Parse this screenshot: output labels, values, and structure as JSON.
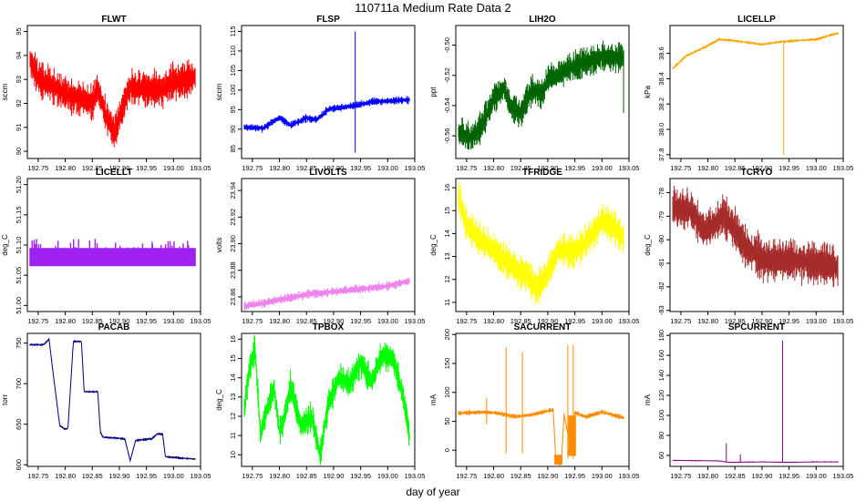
{
  "figure": {
    "title": "110711a   Medium Rate Data 2",
    "xlabel": "day of year"
  },
  "chart_data": [
    {
      "type": "line",
      "title": "FLWT",
      "ylabel": "sccm",
      "color": "#ff0000",
      "xlim": [
        192.73,
        193.05
      ],
      "ylim": [
        89.7,
        95.25
      ],
      "xticks": [
        192.75,
        192.8,
        192.85,
        192.9,
        192.95,
        193.0,
        193.05
      ],
      "xtick_labels": [
        "192.75",
        "192.80",
        "192.85",
        "192.90",
        "192.95",
        "193.00",
        "193.05"
      ],
      "yticks": [
        90,
        91,
        92,
        93,
        94,
        95
      ],
      "ytick_labels": [
        "90",
        "91",
        "92",
        "93",
        "94",
        "95"
      ],
      "x_range": [
        192.735,
        193.04
      ],
      "base": [
        [
          192.735,
          93.8
        ],
        [
          192.75,
          93.0
        ],
        [
          192.78,
          92.7
        ],
        [
          192.8,
          92.4
        ],
        [
          192.83,
          92.2
        ],
        [
          192.85,
          92.0
        ],
        [
          192.86,
          92.6
        ],
        [
          192.875,
          91.5
        ],
        [
          192.89,
          90.7
        ],
        [
          192.905,
          91.8
        ],
        [
          192.92,
          92.7
        ],
        [
          192.95,
          92.6
        ],
        [
          192.98,
          92.6
        ],
        [
          193.0,
          92.9
        ],
        [
          193.04,
          93.1
        ]
      ],
      "noise": 0.9,
      "spikes": []
    },
    {
      "type": "line",
      "title": "FLSP",
      "ylabel": "sccm",
      "color": "#0000ff",
      "xlim": [
        192.73,
        193.05
      ],
      "ylim": [
        82.5,
        116.5
      ],
      "xticks": [
        192.75,
        192.8,
        192.85,
        192.9,
        192.95,
        193.0,
        193.05
      ],
      "xtick_labels": [
        "192.75",
        "192.80",
        "192.85",
        "192.90",
        "192.95",
        "193.00",
        "193.05"
      ],
      "yticks": [
        85,
        90,
        95,
        100,
        105,
        110,
        115
      ],
      "ytick_labels": [
        "85",
        "90",
        "95",
        "100",
        "105",
        "110",
        "115"
      ],
      "x_range": [
        192.735,
        193.04
      ],
      "base": [
        [
          192.735,
          90.5
        ],
        [
          192.77,
          90.2
        ],
        [
          192.8,
          93.0
        ],
        [
          192.82,
          91.0
        ],
        [
          192.85,
          92.8
        ],
        [
          192.87,
          92.5
        ],
        [
          192.89,
          95.0
        ],
        [
          192.91,
          95.5
        ],
        [
          192.94,
          96.0
        ],
        [
          192.97,
          97.0
        ],
        [
          193.04,
          97.5
        ]
      ],
      "noise": 1.2,
      "spikes": [
        [
          192.94,
          84.0,
          115.0
        ]
      ]
    },
    {
      "type": "line",
      "title": "LIH2O",
      "ylabel": "ppt",
      "color": "#006400",
      "xlim": [
        192.73,
        193.05
      ],
      "ylim": [
        -0.575,
        -0.487
      ],
      "xticks": [
        192.75,
        192.8,
        192.85,
        192.9,
        192.95,
        193.0,
        193.05
      ],
      "xtick_labels": [
        "192.75",
        "192.80",
        "192.85",
        "192.90",
        "192.95",
        "193.00",
        "193.05"
      ],
      "yticks": [
        -0.56,
        -0.54,
        -0.52,
        -0.5
      ],
      "ytick_labels": [
        "-0.56",
        "-0.54",
        "-0.52",
        "-0.50"
      ],
      "x_range": [
        192.735,
        193.04
      ],
      "base": [
        [
          192.735,
          -0.558
        ],
        [
          192.76,
          -0.561
        ],
        [
          192.78,
          -0.552
        ],
        [
          192.8,
          -0.535
        ],
        [
          192.82,
          -0.528
        ],
        [
          192.83,
          -0.54
        ],
        [
          192.85,
          -0.545
        ],
        [
          192.87,
          -0.53
        ],
        [
          192.89,
          -0.532
        ],
        [
          192.9,
          -0.522
        ],
        [
          192.92,
          -0.52
        ],
        [
          192.94,
          -0.515
        ],
        [
          192.96,
          -0.513
        ],
        [
          192.98,
          -0.51
        ],
        [
          193.0,
          -0.508
        ],
        [
          193.04,
          -0.508
        ]
      ],
      "noise": 0.012,
      "spikes": [
        [
          193.04,
          -0.545,
          -0.505
        ]
      ]
    },
    {
      "type": "line",
      "title": "LICELLP",
      "ylabel": "kPa",
      "color": "#ffa500",
      "xlim": [
        192.73,
        193.05
      ],
      "ylim": [
        37.77,
        38.82
      ],
      "xticks": [
        192.75,
        192.8,
        192.85,
        192.9,
        192.95,
        193.0,
        193.05
      ],
      "xtick_labels": [
        "192.75",
        "192.80",
        "192.85",
        "192.90",
        "192.95",
        "193.00",
        "193.05"
      ],
      "yticks": [
        37.8,
        38.0,
        38.2,
        38.4,
        38.6
      ],
      "ytick_labels": [
        "37.8",
        "38.0",
        "38.2",
        "38.4",
        "38.6"
      ],
      "x_range": [
        192.735,
        193.04
      ],
      "base": [
        [
          192.735,
          38.48
        ],
        [
          192.76,
          38.58
        ],
        [
          192.78,
          38.62
        ],
        [
          192.8,
          38.66
        ],
        [
          192.82,
          38.71
        ],
        [
          192.85,
          38.7
        ],
        [
          192.9,
          38.67
        ],
        [
          192.93,
          38.69
        ],
        [
          192.96,
          38.7
        ],
        [
          193.0,
          38.71
        ],
        [
          193.04,
          38.76
        ]
      ],
      "noise": 0.015,
      "spikes": [
        [
          192.94,
          37.8,
          38.69
        ]
      ]
    },
    {
      "type": "line",
      "title": "LICELLT",
      "ylabel": "deg_C",
      "color": "#a020f0",
      "xlim": [
        192.73,
        193.05
      ],
      "ylim": [
        50.99,
        51.21
      ],
      "xticks": [
        192.75,
        192.8,
        192.85,
        192.9,
        192.95,
        193.0,
        193.05
      ],
      "xtick_labels": [
        "192.75",
        "192.80",
        "192.85",
        "192.90",
        "192.95",
        "193.00",
        "193.05"
      ],
      "yticks": [
        51.0,
        51.05,
        51.1,
        51.15,
        51.2
      ],
      "ytick_labels": [
        "51.00",
        "51.05",
        "51.10",
        "51.15",
        "51.20"
      ],
      "x_range": [
        192.735,
        193.04
      ],
      "base": [
        [
          192.735,
          51.08
        ],
        [
          193.04,
          51.08
        ]
      ],
      "noise": 0.012,
      "band": [
        51.065,
        51.095
      ],
      "spikes": []
    },
    {
      "type": "line",
      "title": "LIVOLTS",
      "ylabel": "volts",
      "color": "#ee82ee",
      "xlim": [
        192.73,
        193.05
      ],
      "ylim": [
        23.849,
        23.949
      ],
      "xticks": [
        192.75,
        192.8,
        192.85,
        192.9,
        192.95,
        193.0,
        193.05
      ],
      "xtick_labels": [
        "192.75",
        "192.80",
        "192.85",
        "192.90",
        "192.95",
        "193.00",
        "193.05"
      ],
      "yticks": [
        23.86,
        23.88,
        23.9,
        23.92,
        23.94
      ],
      "ytick_labels": [
        "23.86",
        "23.88",
        "23.90",
        "23.92",
        "23.94"
      ],
      "x_range": [
        192.735,
        193.04
      ],
      "base": [
        [
          192.735,
          23.853
        ],
        [
          192.78,
          23.856
        ],
        [
          192.8,
          23.858
        ],
        [
          192.83,
          23.86
        ],
        [
          192.85,
          23.862
        ],
        [
          192.88,
          23.863
        ],
        [
          192.9,
          23.864
        ],
        [
          192.95,
          23.866
        ],
        [
          193.0,
          23.868
        ],
        [
          193.02,
          23.87
        ],
        [
          193.04,
          23.872
        ]
      ],
      "noise": 0.004,
      "spikes": []
    },
    {
      "type": "line",
      "title": "TFRIDGE",
      "ylabel": "deg_C",
      "color": "#ffff00",
      "xlim": [
        192.73,
        193.05
      ],
      "ylim": [
        10.6,
        16.4
      ],
      "xticks": [
        192.75,
        192.8,
        192.85,
        192.9,
        192.95,
        193.0,
        193.05
      ],
      "xtick_labels": [
        "192.75",
        "192.80",
        "192.85",
        "192.90",
        "192.95",
        "193.00",
        "193.05"
      ],
      "yticks": [
        11,
        12,
        13,
        14,
        15,
        16
      ],
      "ytick_labels": [
        "11",
        "12",
        "13",
        "14",
        "15",
        "16"
      ],
      "x_range": [
        192.735,
        193.04
      ],
      "base": [
        [
          192.735,
          15.6
        ],
        [
          192.75,
          14.4
        ],
        [
          192.77,
          13.8
        ],
        [
          192.8,
          13.3
        ],
        [
          192.83,
          12.6
        ],
        [
          192.86,
          12.2
        ],
        [
          192.88,
          11.6
        ],
        [
          192.9,
          12.3
        ],
        [
          192.92,
          13.3
        ],
        [
          192.95,
          13.2
        ],
        [
          192.98,
          13.9
        ],
        [
          193.0,
          14.6
        ],
        [
          193.02,
          14.3
        ],
        [
          193.04,
          13.8
        ]
      ],
      "noise": 0.9,
      "spikes": []
    },
    {
      "type": "line",
      "title": "TCRYO",
      "ylabel": "deg_C",
      "color": "#a52a2a",
      "xlim": [
        192.73,
        193.05
      ],
      "ylim": [
        -83.05,
        -77.4
      ],
      "xticks": [
        192.75,
        192.8,
        192.85,
        192.9,
        192.95,
        193.0,
        193.05
      ],
      "xtick_labels": [
        "192.75",
        "192.80",
        "192.85",
        "192.90",
        "192.95",
        "193.00",
        "193.05"
      ],
      "yticks": [
        -83,
        -82,
        -81,
        -80,
        -79,
        -78
      ],
      "ytick_labels": [
        "-83",
        "-82",
        "-81",
        "-80",
        "-79",
        "-78"
      ],
      "x_range": [
        192.735,
        193.04
      ],
      "base": [
        [
          192.735,
          -78.6
        ],
        [
          192.77,
          -78.8
        ],
        [
          192.79,
          -79.6
        ],
        [
          192.81,
          -79.4
        ],
        [
          192.83,
          -78.9
        ],
        [
          192.85,
          -79.6
        ],
        [
          192.87,
          -80.3
        ],
        [
          192.9,
          -80.8
        ],
        [
          192.93,
          -80.9
        ],
        [
          192.96,
          -80.9
        ],
        [
          193.0,
          -81.0
        ],
        [
          193.04,
          -81.2
        ]
      ],
      "noise": 1.1,
      "spikes": []
    },
    {
      "type": "line",
      "title": "PACAB",
      "ylabel": "torr",
      "color": "#000080",
      "xlim": [
        192.73,
        193.05
      ],
      "ylim": [
        598,
        762
      ],
      "xticks": [
        192.75,
        192.8,
        192.85,
        192.9,
        192.95,
        193.0,
        193.05
      ],
      "xtick_labels": [
        "192.75",
        "192.80",
        "192.85",
        "192.90",
        "192.95",
        "193.00",
        "193.05"
      ],
      "yticks": [
        600,
        650,
        700,
        750
      ],
      "ytick_labels": [
        "600",
        "650",
        "700",
        "750"
      ],
      "x_range": [
        192.735,
        193.04
      ],
      "base": [
        [
          192.735,
          748
        ],
        [
          192.76,
          748
        ],
        [
          192.77,
          755
        ],
        [
          192.78,
          700
        ],
        [
          192.79,
          648
        ],
        [
          192.8,
          644
        ],
        [
          192.805,
          645
        ],
        [
          192.815,
          752
        ],
        [
          192.83,
          752
        ],
        [
          192.835,
          690
        ],
        [
          192.86,
          690
        ],
        [
          192.865,
          640
        ],
        [
          192.87,
          634
        ],
        [
          192.91,
          632
        ],
        [
          192.92,
          605
        ],
        [
          192.93,
          630
        ],
        [
          192.96,
          632
        ],
        [
          192.97,
          638
        ],
        [
          192.98,
          638
        ],
        [
          192.985,
          610
        ],
        [
          193.0,
          609
        ],
        [
          193.04,
          607
        ]
      ],
      "noise": 2.0,
      "spikes": []
    },
    {
      "type": "line",
      "title": "TPBOX",
      "ylabel": "deg_C",
      "color": "#00ff00",
      "xlim": [
        192.73,
        193.05
      ],
      "ylim": [
        9.4,
        16.3
      ],
      "xticks": [
        192.75,
        192.8,
        192.85,
        192.9,
        192.95,
        193.0,
        193.05
      ],
      "xtick_labels": [
        "192.75",
        "192.80",
        "192.85",
        "192.90",
        "192.95",
        "193.00",
        "193.05"
      ],
      "yticks": [
        10,
        11,
        12,
        13,
        14,
        15,
        16
      ],
      "ytick_labels": [
        "10",
        "11",
        "12",
        "13",
        "14",
        "15",
        "16"
      ],
      "x_range": [
        192.735,
        193.04
      ],
      "base": [
        [
          192.735,
          12.3
        ],
        [
          192.745,
          14.5
        ],
        [
          192.755,
          15.5
        ],
        [
          192.765,
          11.0
        ],
        [
          192.775,
          12.2
        ],
        [
          192.79,
          13.5
        ],
        [
          192.8,
          11.2
        ],
        [
          192.81,
          12.0
        ],
        [
          192.82,
          13.6
        ],
        [
          192.84,
          11.5
        ],
        [
          192.86,
          12.0
        ],
        [
          192.875,
          10.0
        ],
        [
          192.89,
          12.6
        ],
        [
          192.91,
          14.0
        ],
        [
          192.93,
          13.7
        ],
        [
          192.95,
          14.8
        ],
        [
          192.97,
          13.8
        ],
        [
          192.99,
          15.2
        ],
        [
          193.01,
          15.0
        ],
        [
          193.03,
          12.8
        ],
        [
          193.04,
          11.0
        ]
      ],
      "noise": 0.9,
      "spikes": []
    },
    {
      "type": "line",
      "title": "SACURRENT",
      "ylabel": "mA",
      "color": "#ff8c00",
      "xlim": [
        192.73,
        193.05
      ],
      "ylim": [
        -28,
        202
      ],
      "xticks": [
        192.75,
        192.8,
        192.85,
        192.9,
        192.95,
        193.0,
        193.05
      ],
      "xtick_labels": [
        "192.75",
        "192.80",
        "192.85",
        "192.90",
        "192.95",
        "193.00",
        "193.05"
      ],
      "yticks": [
        0,
        50,
        100,
        150,
        200
      ],
      "ytick_labels": [
        "0",
        "50",
        "100",
        "150",
        "200"
      ],
      "x_range": [
        192.735,
        193.04
      ],
      "base": [
        [
          192.735,
          64
        ],
        [
          192.78,
          66
        ],
        [
          192.8,
          65
        ],
        [
          192.84,
          58
        ],
        [
          192.87,
          61
        ],
        [
          192.9,
          68
        ],
        [
          192.91,
          70
        ],
        [
          192.915,
          -22
        ],
        [
          192.925,
          -22
        ],
        [
          192.93,
          62
        ],
        [
          192.94,
          15
        ],
        [
          192.95,
          65
        ],
        [
          192.97,
          58
        ],
        [
          193.0,
          66
        ],
        [
          193.04,
          56
        ]
      ],
      "noise": 5,
      "blocks": [
        [
          192.912,
          192.927,
          -25,
          -8
        ],
        [
          192.938,
          192.952,
          -10,
          60
        ]
      ],
      "spikes": [
        [
          192.823,
          -5,
          178
        ],
        [
          192.853,
          -5,
          170
        ],
        [
          192.937,
          -15,
          182
        ],
        [
          192.947,
          -15,
          182
        ],
        [
          192.787,
          45,
          90
        ]
      ]
    },
    {
      "type": "line",
      "title": "SPCURRENT",
      "ylabel": "mA",
      "color": "#8b008b",
      "xlim": [
        192.73,
        193.05
      ],
      "ylim": [
        49,
        182
      ],
      "xticks": [
        192.75,
        192.8,
        192.85,
        192.9,
        192.95,
        193.0,
        193.05
      ],
      "xtick_labels": [
        "192.75",
        "192.80",
        "192.85",
        "192.90",
        "192.95",
        "193.00",
        "193.05"
      ],
      "yticks": [
        60,
        80,
        100,
        120,
        140,
        160,
        180
      ],
      "ytick_labels": [
        "60",
        "80",
        "100",
        "120",
        "140",
        "160",
        "180"
      ],
      "x_range": [
        192.735,
        193.04
      ],
      "base": [
        [
          192.735,
          55
        ],
        [
          192.82,
          54.5
        ],
        [
          192.84,
          53
        ],
        [
          192.9,
          53.5
        ],
        [
          192.95,
          53
        ],
        [
          193.0,
          53.5
        ],
        [
          193.04,
          53.5
        ]
      ],
      "noise": 0.8,
      "spikes": [
        [
          192.834,
          53,
          72
        ],
        [
          192.86,
          53,
          61
        ],
        [
          192.938,
          53,
          175
        ]
      ]
    }
  ]
}
